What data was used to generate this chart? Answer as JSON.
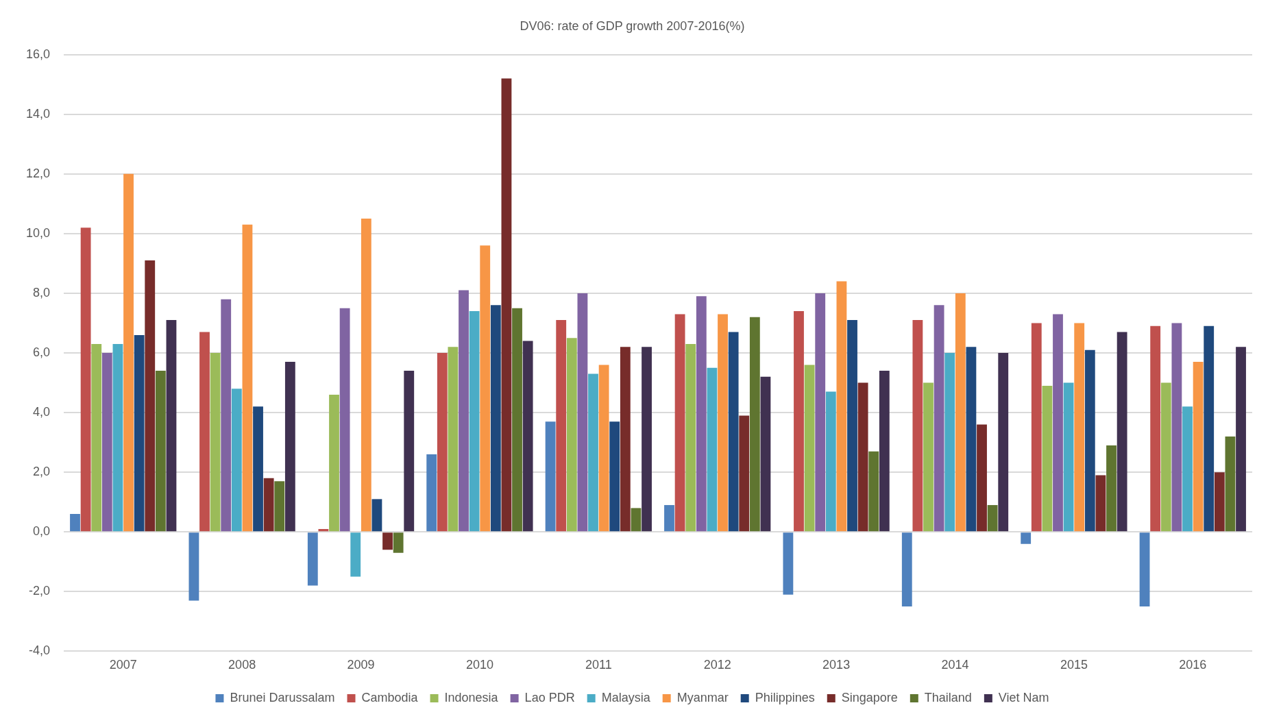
{
  "chart_data": {
    "type": "bar",
    "title": "DV06: rate of GDP growth 2007-2016(%)",
    "categories": [
      "2007",
      "2008",
      "2009",
      "2010",
      "2011",
      "2012",
      "2013",
      "2014",
      "2015",
      "2016"
    ],
    "series": [
      {
        "name": "Brunei Darussalam",
        "color": "#4f81bd",
        "values": [
          0.6,
          -2.3,
          -1.8,
          2.6,
          3.7,
          0.9,
          -2.1,
          -2.5,
          -0.4,
          -2.5
        ]
      },
      {
        "name": "Cambodia",
        "color": "#c0504d",
        "values": [
          10.2,
          6.7,
          0.1,
          6.0,
          7.1,
          7.3,
          7.4,
          7.1,
          7.0,
          6.9
        ]
      },
      {
        "name": "Indonesia",
        "color": "#9bbb59",
        "values": [
          6.3,
          6.0,
          4.6,
          6.2,
          6.5,
          6.3,
          5.6,
          5.0,
          4.9,
          5.0
        ]
      },
      {
        "name": "Lao PDR",
        "color": "#8064a2",
        "values": [
          6.0,
          7.8,
          7.5,
          8.1,
          8.0,
          7.9,
          8.0,
          7.6,
          7.3,
          7.0
        ]
      },
      {
        "name": "Malaysia",
        "color": "#4bacc6",
        "values": [
          6.3,
          4.8,
          -1.5,
          7.4,
          5.3,
          5.5,
          4.7,
          6.0,
          5.0,
          4.2
        ]
      },
      {
        "name": "Myanmar",
        "color": "#f79646",
        "values": [
          12.0,
          10.3,
          10.5,
          9.6,
          5.6,
          7.3,
          8.4,
          8.0,
          7.0,
          5.7
        ]
      },
      {
        "name": "Philippines",
        "color": "#1f497d",
        "values": [
          6.6,
          4.2,
          1.1,
          7.6,
          3.7,
          6.7,
          7.1,
          6.2,
          6.1,
          6.9
        ]
      },
      {
        "name": "Singapore",
        "color": "#772c2a",
        "values": [
          9.1,
          1.8,
          -0.6,
          15.2,
          6.2,
          3.9,
          5.0,
          3.6,
          1.9,
          2.0
        ]
      },
      {
        "name": "Thailand",
        "color": "#5f7530",
        "values": [
          5.4,
          1.7,
          -0.7,
          7.5,
          0.8,
          7.2,
          2.7,
          0.9,
          2.9,
          3.2
        ]
      },
      {
        "name": "Viet Nam",
        "color": "#403151",
        "values": [
          7.1,
          5.7,
          5.4,
          6.4,
          6.2,
          5.2,
          5.4,
          6.0,
          6.7,
          6.2
        ]
      }
    ],
    "ylim": [
      -4,
      16
    ],
    "yticks": [
      {
        "value": -4,
        "label": "-4,0"
      },
      {
        "value": -2,
        "label": "-2,0"
      },
      {
        "value": 0,
        "label": "0,0"
      },
      {
        "value": 2,
        "label": "2,0"
      },
      {
        "value": 4,
        "label": "4,0"
      },
      {
        "value": 6,
        "label": "6,0"
      },
      {
        "value": 8,
        "label": "8,0"
      },
      {
        "value": 10,
        "label": "10,0"
      },
      {
        "value": 12,
        "label": "12,0"
      },
      {
        "value": 14,
        "label": "14,0"
      },
      {
        "value": 16,
        "label": "16,0"
      }
    ],
    "grid": "y",
    "legend": "bottom"
  }
}
